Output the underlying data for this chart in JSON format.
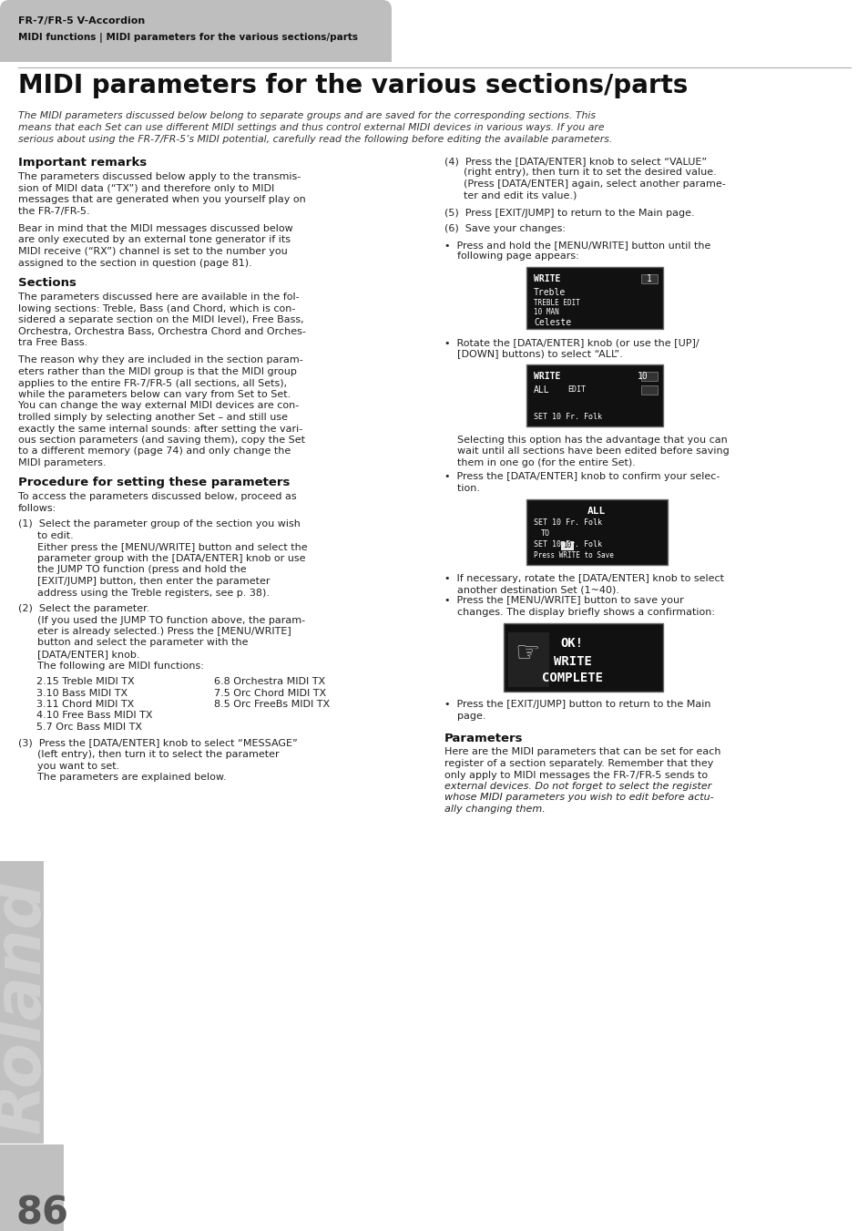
{
  "bg_color": "#ffffff",
  "header_bg": "#b8b8b8",
  "header_text_color": "#222222",
  "header_line1": "FR-7/FR-5 V-Accordion",
  "header_line2": "MIDI functions | MIDI parameters for the various sections/parts",
  "page_number": "86",
  "title": "MIDI parameters for the various sections/parts",
  "intro_italic": "The MIDI parameters discussed below belong to separate groups and are saved for the corresponding sections. This\nmeans that each Set can use different MIDI settings and thus control external MIDI devices in various ways. If you are\nserious about using the FR-7/FR-5’s MIDI potential, carefully read the following before editing the available parameters.",
  "section_important_title": "Important remarks",
  "section_important_body": [
    "The parameters discussed below apply to the transmis-",
    "sion of MIDI data (“TX”) and therefore only to MIDI",
    "messages that are generated when you yourself play on",
    "the FR-7/FR-5.",
    "",
    "Bear in mind that the MIDI messages discussed below",
    "are only executed by an external tone generator if its",
    "MIDI receive (“RX”) channel is set to the number you",
    "assigned to the section in question (page 81)."
  ],
  "section_sections_title": "Sections",
  "section_sections_body": [
    "The parameters discussed here are available in the fol-",
    "lowing sections: Treble, Bass (and Chord, which is con-",
    "sidered a separate section on the MIDI level), Free Bass,",
    "Orchestra, Orchestra Bass, Orchestra Chord and Orches-",
    "tra Free Bass.",
    "",
    "The reason why they are included in the section param-",
    "eters rather than the MIDI group is that the MIDI group",
    "applies to the entire FR-7/FR-5 (all sections, all Sets),",
    "while the parameters below can vary from Set to Set.",
    "You can change the way external MIDI devices are con-",
    "trolled simply by selecting another Set – and still use",
    "exactly the same internal sounds: after setting the vari-",
    "ous section parameters (and saving them), copy the Set",
    "to a different memory (page 74) and only change the",
    "MIDI parameters."
  ],
  "section_procedure_title": "Procedure for setting these parameters",
  "section_procedure_intro": [
    "To access the parameters discussed below, proceed as",
    "follows:"
  ],
  "step1_lines": [
    "(1)  Select the parameter group of the section you wish",
    "      to edit.",
    "      Either press the [MENU/WRITE] button and select the",
    "      parameter group with the [DATA/ENTER] knob or use",
    "      the JUMP TO function (press and hold the",
    "      [EXIT/JUMP] button, then enter the parameter",
    "      address using the Treble registers, see p. 38)."
  ],
  "step2_lines": [
    "(2)  Select the parameter.",
    "      (If you used the JUMP TO function above, the param-",
    "      eter is already selected.) Press the [MENU/WRITE]",
    "      button and select the parameter with the",
    "      [DATA/ENTER] knob.",
    "      The following are MIDI functions:"
  ],
  "midi_functions_col1": [
    "2.15 Treble MIDI TX",
    "3.10 Bass MIDI TX",
    "3.11 Chord MIDI TX",
    "4.10 Free Bass MIDI TX",
    "5.7 Orc Bass MIDI TX"
  ],
  "midi_functions_col2": [
    "6.8 Orchestra MIDI TX",
    "7.5 Orc Chord MIDI TX",
    "8.5 Orc FreeBs MIDI TX"
  ],
  "step3_lines": [
    "(3)  Press the [DATA/ENTER] knob to select “MESSAGE”",
    "      (left entry), then turn it to select the parameter",
    "      you want to set.",
    "      The parameters are explained below."
  ],
  "step4_lines": [
    "(4)  Press the [DATA/ENTER] knob to select “VALUE”",
    "      (right entry), then turn it to set the desired value.",
    "      (Press [DATA/ENTER] again, select another parame-",
    "      ter and edit its value.)"
  ],
  "step5_line": "(5)  Press [EXIT/JUMP] to return to the Main page.",
  "step6_line": "(6)  Save your changes:",
  "bullet6a_lines": [
    "•  Press and hold the [MENU/WRITE] button until the",
    "    following page appears:"
  ],
  "bullet6b_lines": [
    "•  Rotate the [DATA/ENTER] knob (or use the [UP]/",
    "    [DOWN] buttons) to select “ALL”."
  ],
  "select_note_lines": [
    "    Selecting this option has the advantage that you can",
    "    wait until all sections have been edited before saving",
    "    them in one go (for the entire Set)."
  ],
  "bullet6c_lines": [
    "•  Press the [DATA/ENTER] knob to confirm your selec-",
    "    tion."
  ],
  "bullet6d_lines": [
    "•  If necessary, rotate the [DATA/ENTER] knob to select",
    "    another destination Set (1~40)."
  ],
  "bullet6e_lines": [
    "•  Press the [MENU/WRITE] button to save your",
    "    changes. The display briefly shows a confirmation:"
  ],
  "bullet6f_lines": [
    "•  Press the [EXIT/JUMP] button to return to the Main",
    "    page."
  ],
  "section_parameters_title": "Parameters",
  "section_parameters_body": [
    "Here are the MIDI parameters that can be set for each",
    "register of a section separately. Remember that they",
    "only apply to MIDI messages the FR-7/FR-5 sends to",
    "external devices. Do not forget to select the register",
    "whose MIDI parameters you wish to edit before actu-",
    "ally changing them."
  ],
  "section_parameters_italic_words": "Do not forget to select the register\nwhose MIDI parameters you wish to edit before actu-\nally changing them."
}
